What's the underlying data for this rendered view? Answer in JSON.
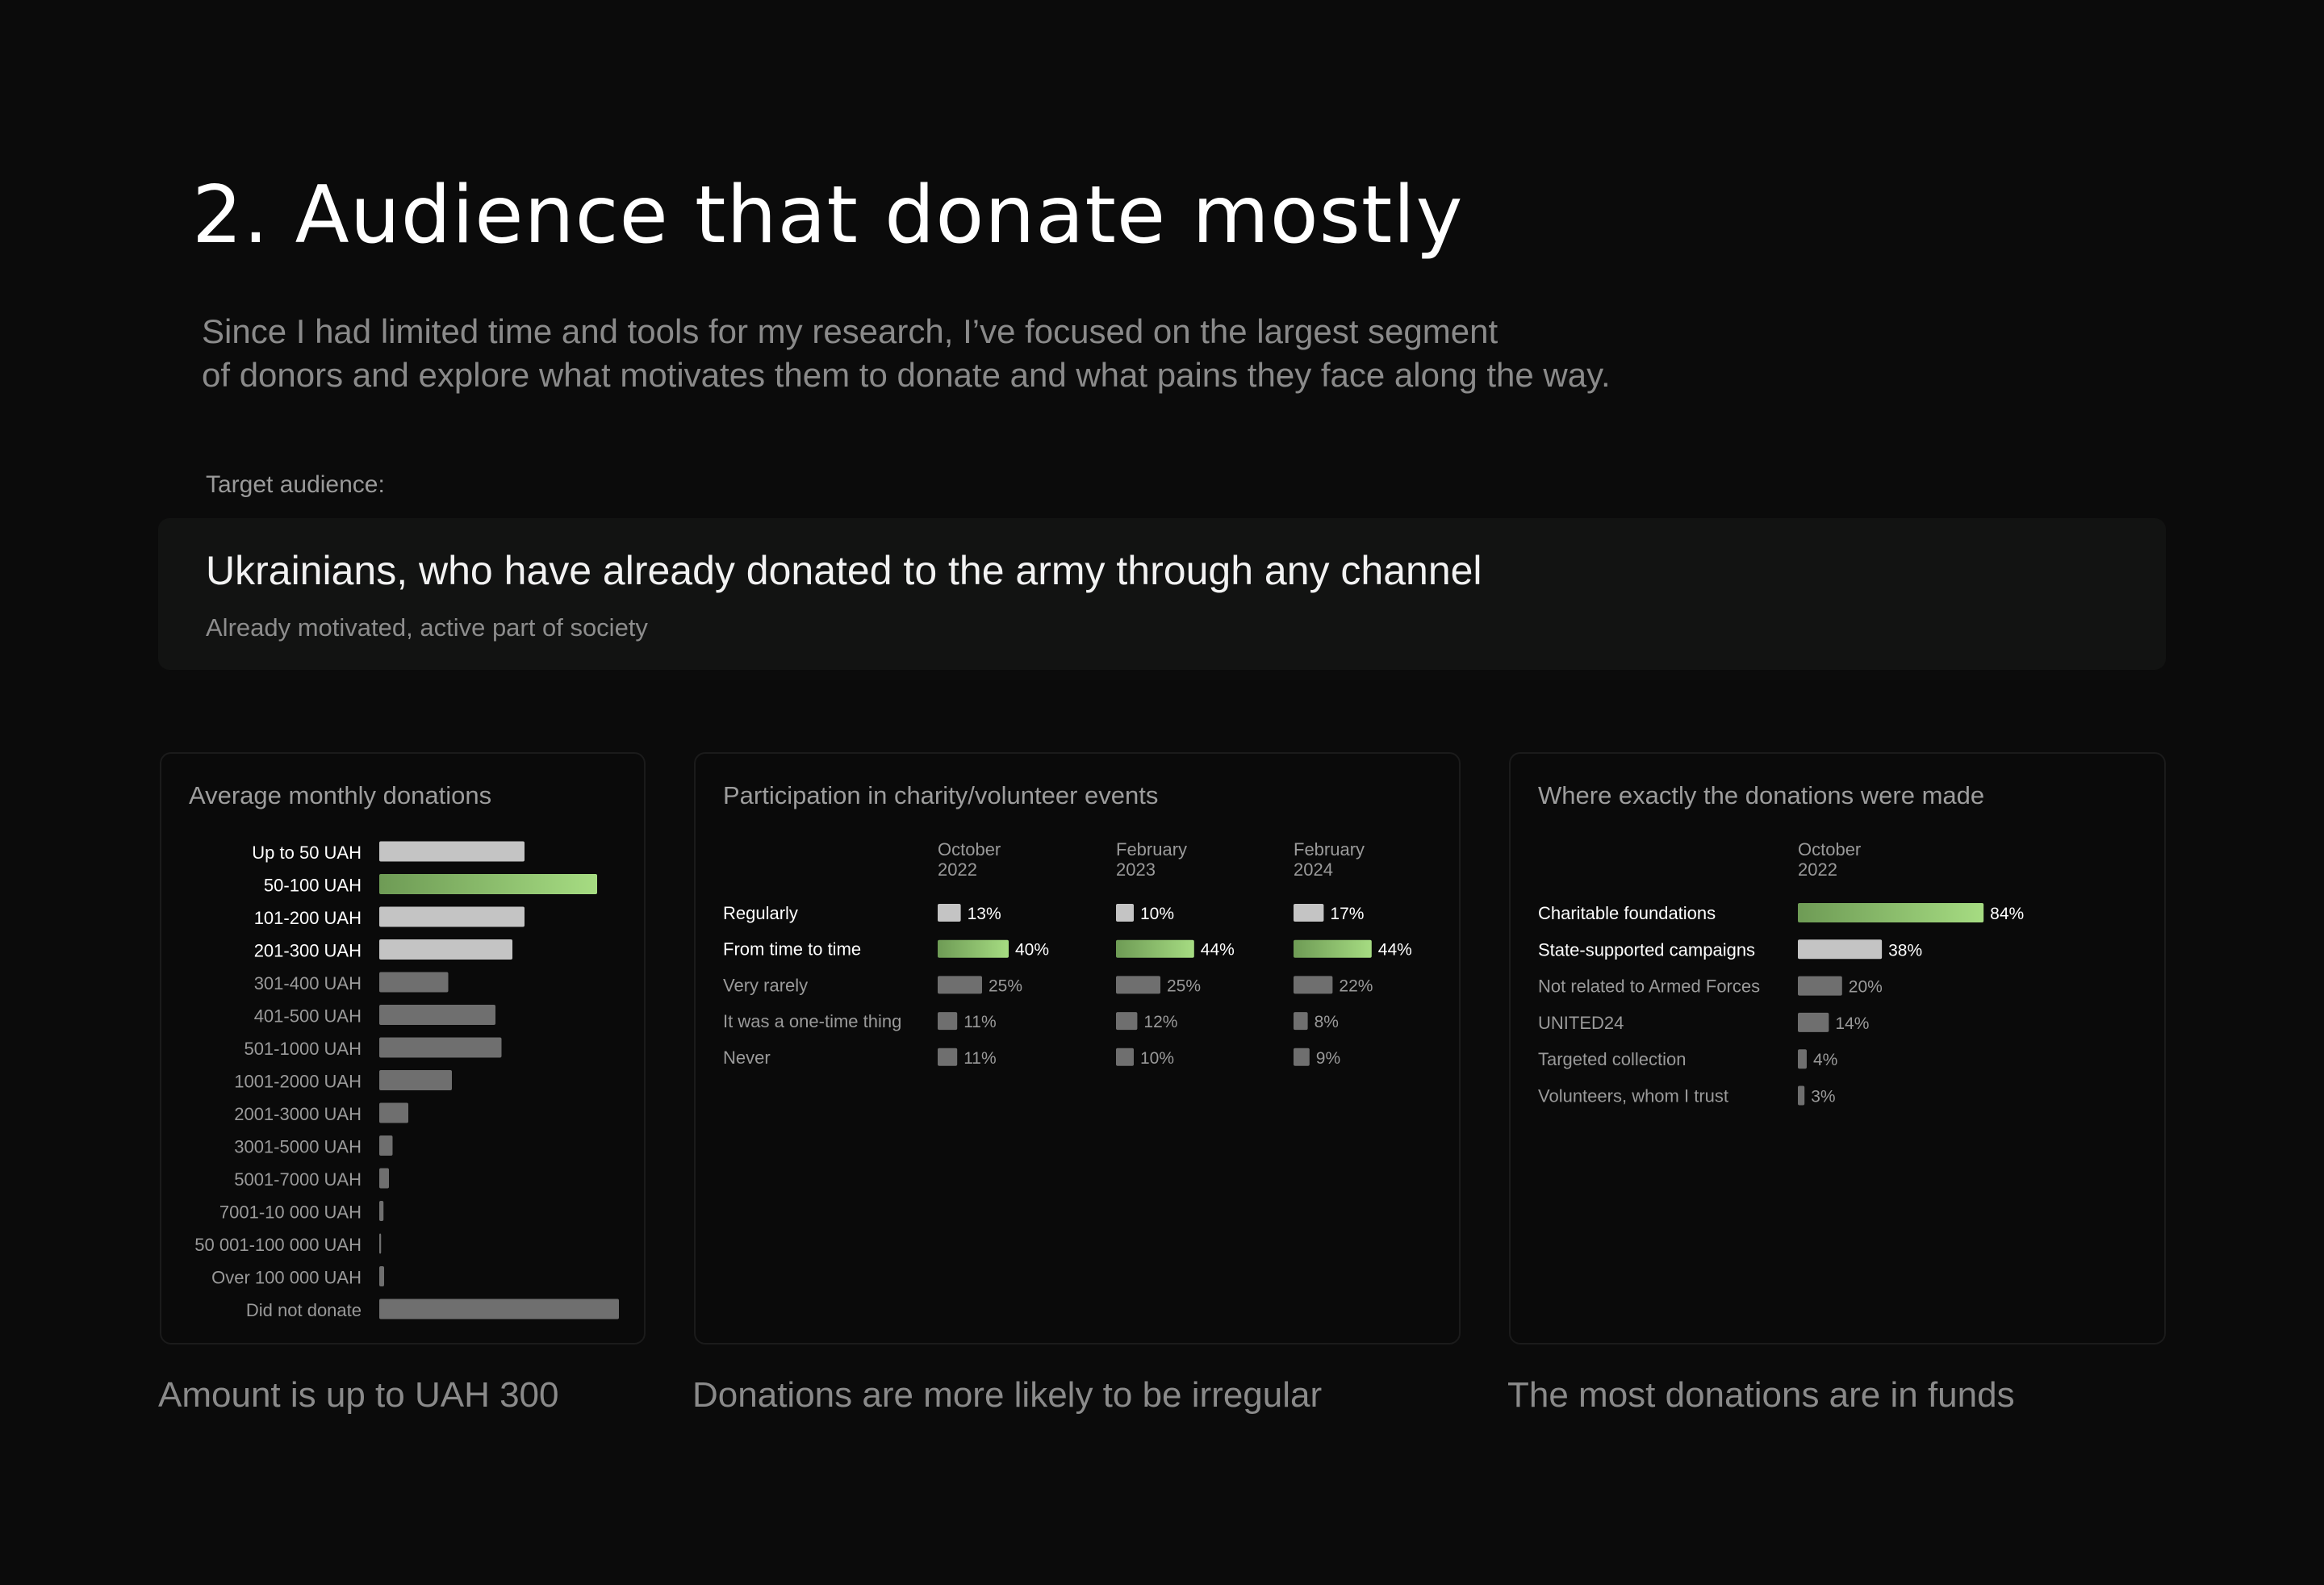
{
  "page": {
    "title": "2. Audience that donate mostly",
    "intro_line1": "Since I had limited time and tools for my research, I’ve focused on the largest segment",
    "intro_line2": "of donors and explore what motivates them to donate and what pains they face along the way.",
    "target_label": "Target audience:",
    "target_main": "Ukrainians, who have already donated to the army through any channel",
    "target_sub": "Already motivated, active part of society"
  },
  "colors": {
    "background": "#0b0b0b",
    "highlight_start": "#6e9b55",
    "highlight_end": "#a6dc82",
    "bar_light": "#c4c4c4",
    "bar_dark": "#6f6f6f",
    "label_light": "#ffffff",
    "label_dim": "#9a9a9a"
  },
  "captions": {
    "left": "Amount is up to UAH 300",
    "middle": "Donations are more likely to be irregular",
    "right": "The most donations are in funds"
  },
  "chart_data": [
    {
      "type": "bar",
      "orientation": "horizontal",
      "title": "Average monthly donations",
      "unit": "%",
      "categories": [
        "Up to 50 UAH",
        "50-100 UAH",
        "101-200 UAH",
        "201-300 UAH",
        "301-400 UAH",
        "401-500 UAH",
        "501-1000 UAH",
        "1001-2000 UAH",
        "2001-3000 UAH",
        "3001-5000 UAH",
        "5001-7000 UAH",
        "7001-10 000 UAH",
        "50 001-100 000 UAH",
        "Over 100 000 UAH",
        "Did not donate"
      ],
      "values": [
        12,
        18,
        12,
        11,
        5.7,
        9.6,
        10.1,
        6,
        2.4,
        1.1,
        0.8,
        0.35,
        0.15,
        0.4,
        19.8
      ],
      "highlight": [
        "light",
        "best",
        "light",
        "light",
        "dark",
        "dark",
        "dark",
        "dark",
        "dark",
        "dark",
        "dark",
        "dark",
        "dark",
        "dark",
        "dark"
      ]
    },
    {
      "type": "bar",
      "orientation": "horizontal",
      "title": "Participation in charity/volunteer events",
      "unit": "%",
      "periods": [
        "October\n2022",
        "February\n2023",
        "February\n2024"
      ],
      "categories": [
        "Regularly",
        "From time to time",
        "Very rarely",
        "It was a one-time thing",
        "Never"
      ],
      "series": [
        {
          "name": "October 2022",
          "values": [
            13,
            40,
            25,
            11,
            11
          ]
        },
        {
          "name": "February 2023",
          "values": [
            10,
            44,
            25,
            12,
            10
          ]
        },
        {
          "name": "February 2024",
          "values": [
            17,
            44,
            22,
            8,
            9
          ]
        }
      ],
      "row_style": [
        "light",
        "best",
        "dark",
        "dark",
        "dark"
      ]
    },
    {
      "type": "bar",
      "orientation": "horizontal",
      "title": "Where exactly the donations were made",
      "unit": "%",
      "periods": [
        "October\n2022"
      ],
      "categories": [
        "Charitable foundations",
        "State-supported campaigns",
        "Not related to Armed Forces",
        "UNITED24",
        "Targeted collection",
        "Volunteers, whom I trust"
      ],
      "values": [
        84,
        38,
        20,
        14,
        4,
        3
      ],
      "row_style": [
        "best",
        "light",
        "dark",
        "dark",
        "dark",
        "dark"
      ]
    }
  ]
}
